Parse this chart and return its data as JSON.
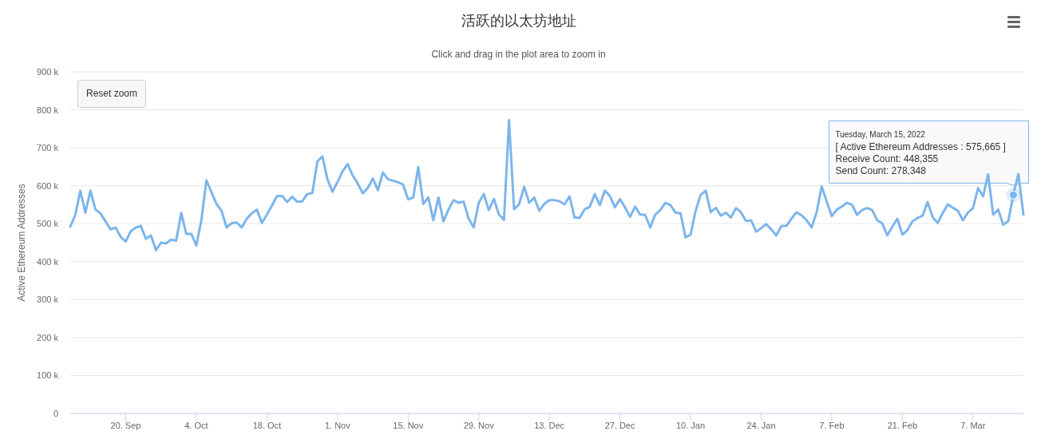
{
  "chart_data": {
    "type": "line",
    "title": "活跃的以太坊地址",
    "subtitle": "Click and drag in the plot area to zoom in",
    "ylabel": "Active Ethereum Addresses",
    "annotations": [
      "Reset zoom",
      {
        "text": "Tuesday, March 15, 2022\n[ Active Ethereum Addresses : 575,665 ]\nReceive Count: 448,355\nSend Count: 278,348",
        "x": "2022-03-15",
        "y": 575665
      }
    ],
    "grid": "y",
    "line_style": "solid",
    "xlim": [
      "2021-09-09",
      "2022-03-17"
    ],
    "xticks": [
      {
        "value": "2021-09-20",
        "label": "20. Sep"
      },
      {
        "value": "2021-10-04",
        "label": "4. Oct"
      },
      {
        "value": "2021-10-18",
        "label": "18. Oct"
      },
      {
        "value": "2021-11-01",
        "label": "1. Nov"
      },
      {
        "value": "2021-11-15",
        "label": "15. Nov"
      },
      {
        "value": "2021-11-29",
        "label": "29. Nov"
      },
      {
        "value": "2021-12-13",
        "label": "13. Dec"
      },
      {
        "value": "2021-12-27",
        "label": "27. Dec"
      },
      {
        "value": "2022-01-10",
        "label": "10. Jan"
      },
      {
        "value": "2022-01-24",
        "label": "24. Jan"
      },
      {
        "value": "2022-02-07",
        "label": "7. Feb"
      },
      {
        "value": "2022-02-21",
        "label": "21. Feb"
      },
      {
        "value": "2022-03-07",
        "label": "7. Mar"
      }
    ],
    "ylim": [
      0,
      900000
    ],
    "yticks": [
      {
        "value": 0,
        "label": "0"
      },
      {
        "value": 100000,
        "label": "100 k"
      },
      {
        "value": 200000,
        "label": "200 k"
      },
      {
        "value": 300000,
        "label": "300 k"
      },
      {
        "value": 400000,
        "label": "400 k"
      },
      {
        "value": 500000,
        "label": "500 k"
      },
      {
        "value": 600000,
        "label": "600 k"
      },
      {
        "value": 700000,
        "label": "700 k"
      },
      {
        "value": 800000,
        "label": "800 k"
      },
      {
        "value": 900000,
        "label": "900 k"
      }
    ],
    "series": [
      {
        "color": "#7cb5ec",
        "x": [
          "2021-09-09",
          "2021-09-10",
          "2021-09-11",
          "2021-09-12",
          "2021-09-13",
          "2021-09-14",
          "2021-09-15",
          "2021-09-16",
          "2021-09-17",
          "2021-09-18",
          "2021-09-19",
          "2021-09-20",
          "2021-09-21",
          "2021-09-22",
          "2021-09-23",
          "2021-09-24",
          "2021-09-25",
          "2021-09-26",
          "2021-09-27",
          "2021-09-28",
          "2021-09-29",
          "2021-09-30",
          "2021-10-01",
          "2021-10-02",
          "2021-10-03",
          "2021-10-04",
          "2021-10-05",
          "2021-10-06",
          "2021-10-07",
          "2021-10-08",
          "2021-10-09",
          "2021-10-10",
          "2021-10-11",
          "2021-10-12",
          "2021-10-13",
          "2021-10-14",
          "2021-10-15",
          "2021-10-16",
          "2021-10-17",
          "2021-10-18",
          "2021-10-19",
          "2021-10-20",
          "2021-10-21",
          "2021-10-22",
          "2021-10-23",
          "2021-10-24",
          "2021-10-25",
          "2021-10-26",
          "2021-10-27",
          "2021-10-28",
          "2021-10-29",
          "2021-10-30",
          "2021-10-31",
          "2021-11-01",
          "2021-11-02",
          "2021-11-03",
          "2021-11-04",
          "2021-11-05",
          "2021-11-06",
          "2021-11-07",
          "2021-11-08",
          "2021-11-09",
          "2021-11-10",
          "2021-11-11",
          "2021-11-12",
          "2021-11-13",
          "2021-11-14",
          "2021-11-15",
          "2021-11-16",
          "2021-11-17",
          "2021-11-18",
          "2021-11-19",
          "2021-11-20",
          "2021-11-21",
          "2021-11-22",
          "2021-11-23",
          "2021-11-24",
          "2021-11-25",
          "2021-11-26",
          "2021-11-27",
          "2021-11-28",
          "2021-11-29",
          "2021-11-30",
          "2021-12-01",
          "2021-12-02",
          "2021-12-03",
          "2021-12-04",
          "2021-12-05",
          "2021-12-06",
          "2021-12-07",
          "2021-12-08",
          "2021-12-09",
          "2021-12-10",
          "2021-12-11",
          "2021-12-12",
          "2021-12-13",
          "2021-12-14",
          "2021-12-15",
          "2021-12-16",
          "2021-12-17",
          "2021-12-18",
          "2021-12-19",
          "2021-12-20",
          "2021-12-21",
          "2021-12-22",
          "2021-12-23",
          "2021-12-24",
          "2021-12-25",
          "2021-12-26",
          "2021-12-27",
          "2021-12-28",
          "2021-12-29",
          "2021-12-30",
          "2021-12-31",
          "2022-01-01",
          "2022-01-02",
          "2022-01-03",
          "2022-01-04",
          "2022-01-05",
          "2022-01-06",
          "2022-01-07",
          "2022-01-08",
          "2022-01-09",
          "2022-01-10",
          "2022-01-11",
          "2022-01-12",
          "2022-01-13",
          "2022-01-14",
          "2022-01-15",
          "2022-01-16",
          "2022-01-17",
          "2022-01-18",
          "2022-01-19",
          "2022-01-20",
          "2022-01-21",
          "2022-01-22",
          "2022-01-23",
          "2022-01-24",
          "2022-01-25",
          "2022-01-26",
          "2022-01-27",
          "2022-01-28",
          "2022-01-29",
          "2022-01-30",
          "2022-01-31",
          "2022-02-01",
          "2022-02-02",
          "2022-02-03",
          "2022-02-04",
          "2022-02-05",
          "2022-02-06",
          "2022-02-07",
          "2022-02-08",
          "2022-02-09",
          "2022-02-10",
          "2022-02-11",
          "2022-02-12",
          "2022-02-13",
          "2022-02-14",
          "2022-02-15",
          "2022-02-16",
          "2022-02-17",
          "2022-02-18",
          "2022-02-19",
          "2022-02-20",
          "2022-02-21",
          "2022-02-22",
          "2022-02-23",
          "2022-02-24",
          "2022-02-25",
          "2022-02-26",
          "2022-02-27",
          "2022-02-28",
          "2022-03-01",
          "2022-03-02",
          "2022-03-03",
          "2022-03-04",
          "2022-03-05",
          "2022-03-06",
          "2022-03-07",
          "2022-03-08",
          "2022-03-09",
          "2022-03-10",
          "2022-03-11",
          "2022-03-12",
          "2022-03-13",
          "2022-03-14",
          "2022-03-15",
          "2022-03-16",
          "2022-03-17"
        ],
        "values": [
          492000,
          523000,
          587000,
          529000,
          587000,
          537000,
          527000,
          506000,
          485000,
          490000,
          465000,
          453000,
          480000,
          490000,
          494000,
          460000,
          469000,
          430000,
          450000,
          448000,
          458000,
          455000,
          528000,
          473000,
          473000,
          443000,
          509000,
          614000,
          583000,
          552000,
          534000,
          490000,
          501000,
          503000,
          490000,
          513000,
          527000,
          537000,
          502000,
          524000,
          548000,
          573000,
          573000,
          557000,
          571000,
          558000,
          559000,
          578000,
          581000,
          664000,
          677000,
          617000,
          584000,
          610000,
          638000,
          657000,
          627000,
          606000,
          580000,
          594000,
          619000,
          588000,
          635000,
          617000,
          613000,
          609000,
          603000,
          564000,
          569000,
          649000,
          552000,
          569000,
          509000,
          569000,
          506000,
          537000,
          562000,
          555000,
          558000,
          513000,
          490000,
          555000,
          578000,
          536000,
          565000,
          524000,
          510000,
          773000,
          538000,
          551000,
          597000,
          555000,
          569000,
          534000,
          552000,
          562000,
          562000,
          559000,
          551000,
          572000,
          516000,
          515000,
          538000,
          544000,
          578000,
          549000,
          587000,
          573000,
          543000,
          565000,
          543000,
          518000,
          545000,
          524000,
          523000,
          490000,
          524000,
          536000,
          555000,
          549000,
          529000,
          528000,
          464000,
          471000,
          534000,
          576000,
          587000,
          530000,
          542000,
          521000,
          529000,
          516000,
          541000,
          530000,
          507000,
          509000,
          479000,
          488000,
          499000,
          485000,
          469000,
          494000,
          494000,
          513000,
          530000,
          522000,
          509000,
          490000,
          530000,
          598000,
          558000,
          520000,
          537000,
          545000,
          555000,
          550000,
          523000,
          536000,
          541000,
          536000,
          509000,
          501000,
          469000,
          492000,
          513000,
          471000,
          483000,
          506000,
          515000,
          521000,
          557000,
          517000,
          502000,
          528000,
          551000,
          542000,
          534000,
          509000,
          529000,
          541000,
          594000,
          572000,
          630000,
          524000,
          537000,
          497000,
          507000,
          575665,
          631000,
          524000
        ]
      }
    ]
  }
}
